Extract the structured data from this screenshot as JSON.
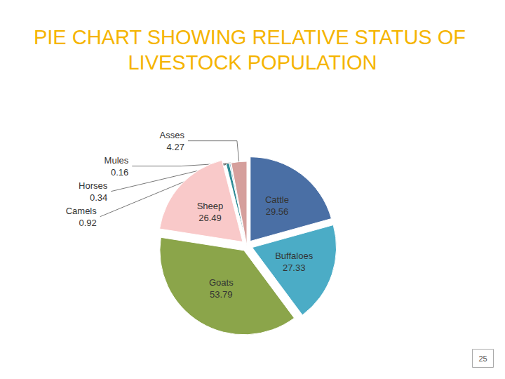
{
  "chart_data": {
    "type": "pie",
    "title": "PIE CHART SHOWING RELATIVE STATUS OF LIVESTOCK POPULATION",
    "categories": [
      "Cattle",
      "Buffaloes",
      "Goats",
      "Sheep",
      "Camels",
      "Horses",
      "Mules",
      "Asses"
    ],
    "values": [
      29.56,
      27.33,
      53.79,
      26.49,
      0.92,
      0.34,
      0.16,
      4.27
    ],
    "colors": [
      "#4a6fa5",
      "#4bacc6",
      "#8ba54a",
      "#f9c9c9",
      "#2e8b95",
      "#7fb2c6",
      "#a6c8d8",
      "#d59f9c"
    ],
    "data_labels": true
  },
  "page_number": "25"
}
